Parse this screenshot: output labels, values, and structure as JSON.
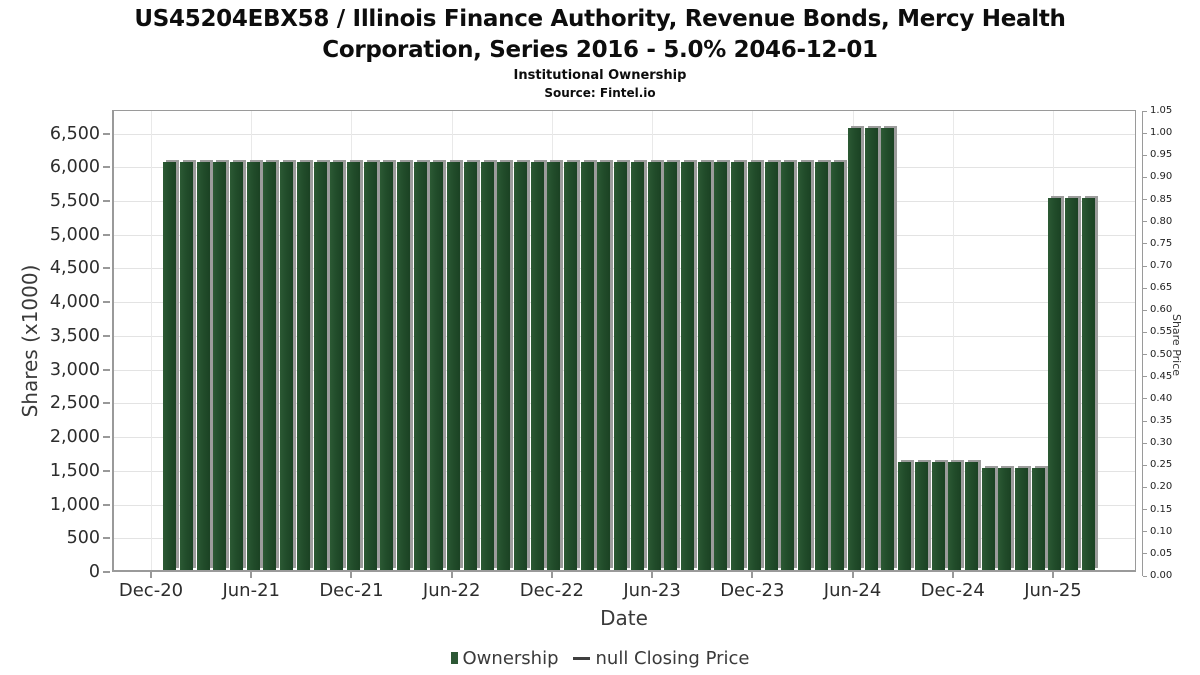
{
  "header": {
    "title_line1": "US45204EBX58 / Illinois Finance Authority, Revenue Bonds, Mercy Health",
    "title_line2": "Corporation, Series 2016 - 5.0% 2046-12-01",
    "subtitle": "Institutional Ownership",
    "source": "Source: Fintel.io"
  },
  "legend": {
    "ownership_label": "Ownership",
    "price_label": "null Closing Price"
  },
  "colors": {
    "bar_green": "#224d2b",
    "bar_shadow": "#9c9c9c",
    "grid": "#e3e3e3",
    "axis": "#9a9a9a",
    "text": "#2d2d2d"
  },
  "chart_data": {
    "type": "bar",
    "title": "US45204EBX58 / Illinois Finance Authority, Revenue Bonds, Mercy Health Corporation, Series 2016 - 5.0% 2046-12-01",
    "subtitle": "Institutional Ownership",
    "source": "Source: Fintel.io",
    "xlabel": "Date",
    "ylabel": "Shares (x1000)",
    "ylabel_right": "Share Price",
    "grid": true,
    "legend_position": "bottom",
    "legend_entries": [
      {
        "label": "Ownership",
        "type": "bar",
        "color": "#224d2b"
      },
      {
        "label": "null Closing Price",
        "type": "line",
        "color": "#3f3f3f"
      }
    ],
    "ylim_left": [
      0,
      6850
    ],
    "ylim_right": [
      0,
      1.05
    ],
    "x_tick_labels": [
      "Dec-20",
      "Jun-21",
      "Dec-21",
      "Jun-22",
      "Dec-22",
      "Jun-23",
      "Dec-23",
      "Jun-24",
      "Dec-24",
      "Jun-25"
    ],
    "left_tick_labels": [
      "0",
      "500",
      "1,000",
      "1,500",
      "2,000",
      "2,500",
      "3,000",
      "3,500",
      "4,000",
      "4,500",
      "5,000",
      "5,500",
      "6,000",
      "6,500"
    ],
    "left_tick_step": 500,
    "right_tick_labels": [
      "0.00",
      "0.05",
      "0.10",
      "0.15",
      "0.20",
      "0.25",
      "0.30",
      "0.35",
      "0.40",
      "0.45",
      "0.50",
      "0.55",
      "0.60",
      "0.65",
      "0.70",
      "0.75",
      "0.80",
      "0.85",
      "0.90",
      "0.95",
      "1.00",
      "1.05"
    ],
    "right_tick_step": 0.05,
    "categories": [
      "Jan-21",
      "Feb-21",
      "Mar-21",
      "Apr-21",
      "May-21",
      "Jun-21",
      "Jul-21",
      "Aug-21",
      "Sep-21",
      "Oct-21",
      "Nov-21",
      "Dec-21",
      "Jan-22",
      "Feb-22",
      "Mar-22",
      "Apr-22",
      "May-22",
      "Jun-22",
      "Jul-22",
      "Aug-22",
      "Sep-22",
      "Oct-22",
      "Nov-22",
      "Dec-22",
      "Jan-23",
      "Feb-23",
      "Mar-23",
      "Apr-23",
      "May-23",
      "Jun-23",
      "Jul-23",
      "Aug-23",
      "Sep-23",
      "Oct-23",
      "Nov-23",
      "Dec-23",
      "Jan-24",
      "Feb-24",
      "Mar-24",
      "Apr-24",
      "May-24",
      "Jun-24",
      "Jul-24",
      "Aug-24",
      "Sep-24",
      "Oct-24",
      "Nov-24",
      "Dec-24",
      "Jan-25",
      "Feb-25",
      "Mar-25",
      "Apr-25",
      "May-25",
      "Jun-25",
      "Jul-25",
      "Aug-25"
    ],
    "series": [
      {
        "name": "Ownership",
        "units": "shares x1000",
        "values": [
          6050,
          6050,
          6050,
          6050,
          6050,
          6050,
          6050,
          6050,
          6050,
          6050,
          6050,
          6050,
          6050,
          6050,
          6050,
          6050,
          6050,
          6050,
          6050,
          6050,
          6050,
          6050,
          6050,
          6050,
          6050,
          6050,
          6050,
          6050,
          6050,
          6050,
          6050,
          6050,
          6050,
          6050,
          6050,
          6050,
          6050,
          6050,
          6050,
          6050,
          6050,
          6550,
          6550,
          6550,
          1600,
          1600,
          1600,
          1600,
          1600,
          1510,
          1510,
          1510,
          1510,
          5510,
          5510,
          5510
        ]
      },
      {
        "name": "null Closing Price",
        "units": "share price",
        "values": []
      }
    ]
  }
}
